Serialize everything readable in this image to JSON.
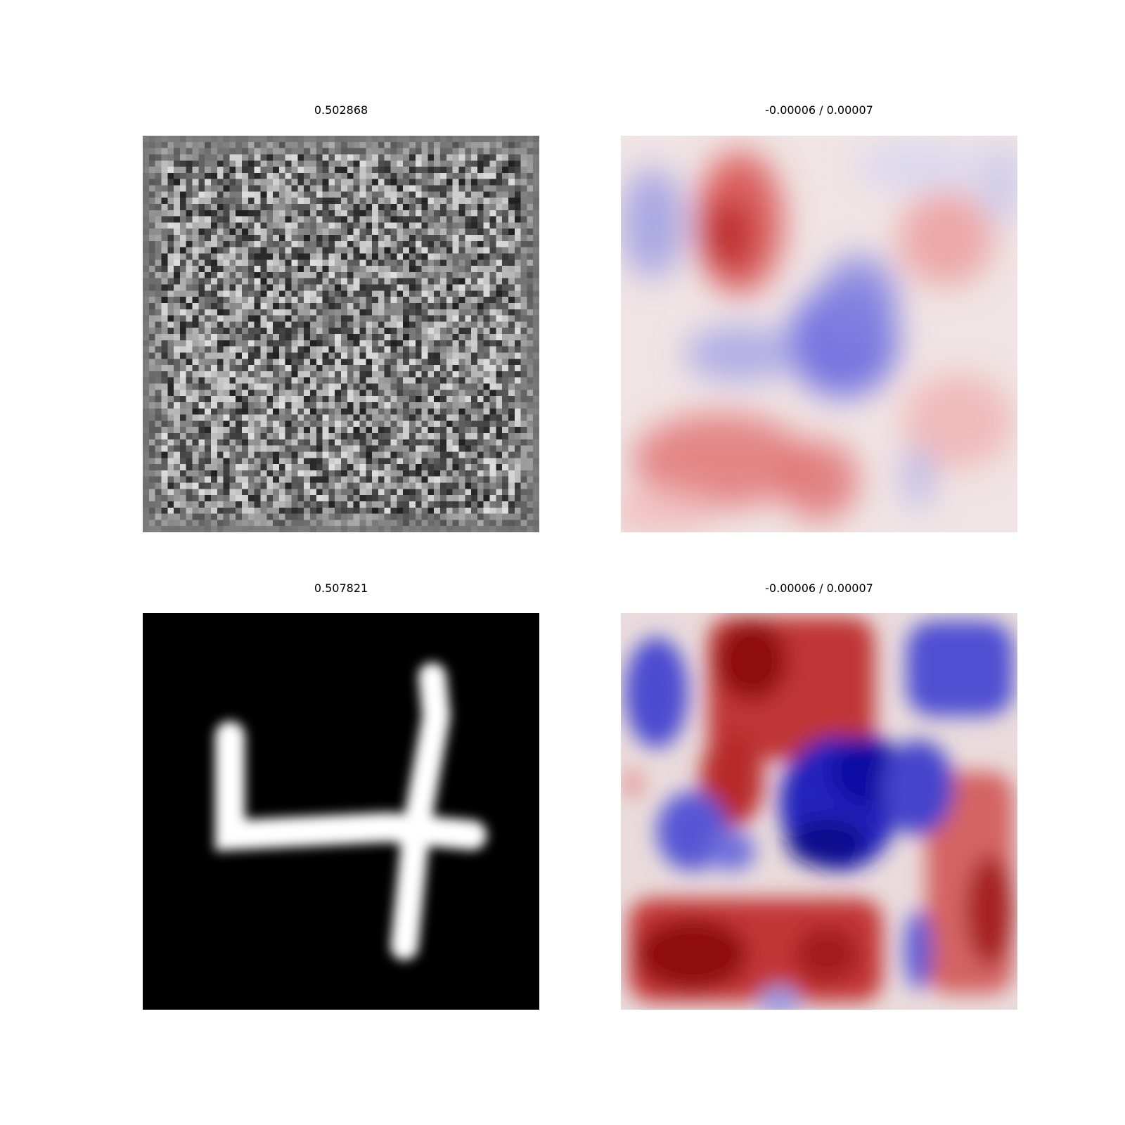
{
  "figure": {
    "panels": [
      {
        "id": "noise",
        "title": "0.502868",
        "kind": "grayscale-image",
        "description_of_content": "random grayscale pixel noise",
        "colormap": "gray"
      },
      {
        "id": "noise-attribution",
        "title": "-0.00006 / 0.00007",
        "kind": "diverging-heatmap",
        "colormap": "seismic",
        "range": [
          -6e-05,
          7e-05
        ]
      },
      {
        "id": "digit",
        "title": "0.507821",
        "kind": "grayscale-image",
        "colormap": "gray"
      },
      {
        "id": "digit-attribution",
        "title": "-0.00006 / 0.00007",
        "kind": "diverging-heatmap",
        "colormap": "seismic",
        "range": [
          -6e-05,
          7e-05
        ]
      }
    ]
  },
  "colors": {
    "background": "#ffffff",
    "negative": "#00008b",
    "neutral": "#e6e6e6",
    "positive": "#8b0000"
  }
}
